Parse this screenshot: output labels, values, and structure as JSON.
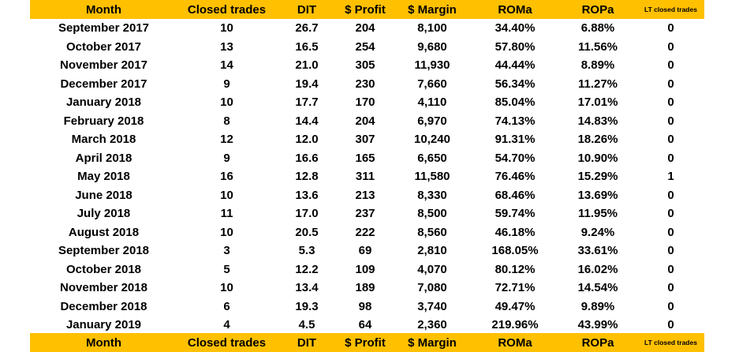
{
  "columns": [
    "Month",
    "Closed trades",
    "DIT",
    "$ Profit",
    "$ Margin",
    "ROMa",
    "ROPa",
    "LT closed trades"
  ],
  "rows": [
    [
      "September 2017",
      "10",
      "26.7",
      "204",
      "8,100",
      "34.40%",
      "6.88%",
      "0"
    ],
    [
      "October 2017",
      "13",
      "16.5",
      "254",
      "9,680",
      "57.80%",
      "11.56%",
      "0"
    ],
    [
      "November 2017",
      "14",
      "21.0",
      "305",
      "11,930",
      "44.44%",
      "8.89%",
      "0"
    ],
    [
      "December 2017",
      "9",
      "19.4",
      "230",
      "7,660",
      "56.34%",
      "11.27%",
      "0"
    ],
    [
      "January 2018",
      "10",
      "17.7",
      "170",
      "4,110",
      "85.04%",
      "17.01%",
      "0"
    ],
    [
      "February 2018",
      "8",
      "14.4",
      "204",
      "6,970",
      "74.13%",
      "14.83%",
      "0"
    ],
    [
      "March 2018",
      "12",
      "12.0",
      "307",
      "10,240",
      "91.31%",
      "18.26%",
      "0"
    ],
    [
      "April 2018",
      "9",
      "16.6",
      "165",
      "6,650",
      "54.70%",
      "10.90%",
      "0"
    ],
    [
      "May 2018",
      "16",
      "12.8",
      "311",
      "11,580",
      "76.46%",
      "15.29%",
      "1"
    ],
    [
      "June 2018",
      "10",
      "13.6",
      "213",
      "8,330",
      "68.46%",
      "13.69%",
      "0"
    ],
    [
      "July 2018",
      "11",
      "17.0",
      "237",
      "8,500",
      "59.74%",
      "11.95%",
      "0"
    ],
    [
      "August 2018",
      "10",
      "20.5",
      "222",
      "8,560",
      "46.18%",
      "9.24%",
      "0"
    ],
    [
      "September 2018",
      "3",
      "5.3",
      "69",
      "2,810",
      "168.05%",
      "33.61%",
      "0"
    ],
    [
      "October 2018",
      "5",
      "12.2",
      "109",
      "4,070",
      "80.12%",
      "16.02%",
      "0"
    ],
    [
      "November 2018",
      "10",
      "13.4",
      "189",
      "7,080",
      "72.71%",
      "14.54%",
      "0"
    ],
    [
      "December 2018",
      "6",
      "19.3",
      "98",
      "3,740",
      "49.47%",
      "9.89%",
      "0"
    ],
    [
      "January 2019",
      "4",
      "4.5",
      "64",
      "2,360",
      "219.96%",
      "43.99%",
      "0"
    ]
  ],
  "colors": {
    "header_background": "#ffc000",
    "text": "#000000"
  }
}
